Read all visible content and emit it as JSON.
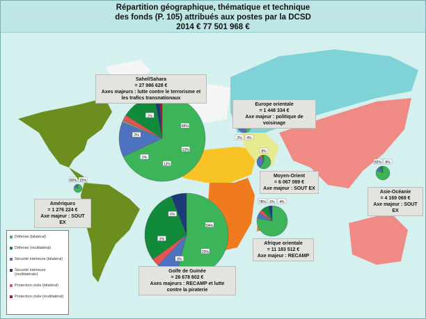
{
  "title": {
    "line1": "Répartition géographique, thématique et technique",
    "line2": "des fonds (P. 105) attribués aux postes par la DCSD",
    "line3": "2014  € 77 501 968 €"
  },
  "colors": {
    "ocean": "#d4f0ef",
    "amerique": "#6b8e1f",
    "sahel": "#f7c325",
    "golfe_guinee": "#f07a1e",
    "europe_orientale": "#7fd3d6",
    "asie_oceanie": "#f08a84",
    "other_land": "#f4f6f6"
  },
  "legend": [
    {
      "label": "Défense (bilatéral)",
      "color": "#3cb55a"
    },
    {
      "label": "Défense (multilatéral)",
      "color": "#118a3a"
    },
    {
      "label": "Sécurité intérieure (bilatéral)",
      "color": "#4d73c0"
    },
    {
      "label": "Sécurité intérieure (multilatérale)",
      "color": "#1b3a78"
    },
    {
      "label": "Protection civile (bilatéral)",
      "color": "#e8534f"
    },
    {
      "label": "Protection civile (multilatéral)",
      "color": "#9b1b1b"
    }
  ],
  "regions": [
    {
      "name": "Sahel/Sahara",
      "amount": "= 27 986 628 €",
      "axis": "Axes majeurs : lutte contre le terrorisme et les trafics transnationaux",
      "pie": [
        68,
        0,
        13,
        1,
        2,
        13,
        2,
        1
      ],
      "pie_labels": [
        "68%",
        "13%",
        "13%",
        "2%",
        "2%",
        "1%"
      ]
    },
    {
      "name": "Golfe de Guinée",
      "amount": "= 26 678 802 €",
      "axis": "Axes majeurs : RECAMP et lutte contre la piraterie",
      "pie": [
        54,
        0,
        8,
        0,
        3,
        29,
        6,
        0
      ],
      "pie_labels": [
        "54%",
        "29%",
        "8%",
        "3%",
        "6%"
      ]
    },
    {
      "name": "Europe orientale",
      "amount": "= 1 448 334 €",
      "axis": "Axe majeur : politique de voisinage",
      "pie": [
        45,
        0,
        40,
        0,
        0,
        10,
        5,
        0
      ],
      "pie_labels": [
        "2%",
        "4%"
      ]
    },
    {
      "name": "Moyen-Orient",
      "amount": "= 6 067 089 €",
      "axis": "Axe majeur : SOUT EX",
      "pie": [
        60,
        0,
        30,
        0,
        5,
        5,
        0,
        0
      ],
      "pie_labels": [
        "8%"
      ]
    },
    {
      "name": "Afrique orientale",
      "amount": "= 11 183 512 €",
      "axis": "Axe majeur : RECAMP",
      "pie": [
        78,
        0,
        6,
        0,
        4,
        8,
        4,
        0
      ],
      "pie_labels": [
        "78%",
        "6%",
        "4%"
      ]
    },
    {
      "name": "Asie-Océanie",
      "amount": "= 4 169 069 €",
      "axis": "Axe majeur : SOUT EX",
      "pie": [
        82,
        0,
        10,
        0,
        0,
        8,
        0,
        0
      ],
      "pie_labels": [
        "82%",
        "8%"
      ]
    },
    {
      "name": "Amériques",
      "amount": "= 1 276 224 €",
      "axis": "Axe majeur : SOUT EX",
      "pie": [
        80,
        0,
        15,
        0,
        0,
        5,
        0,
        0
      ],
      "pie_labels": [
        "80%",
        "15%"
      ]
    }
  ]
}
